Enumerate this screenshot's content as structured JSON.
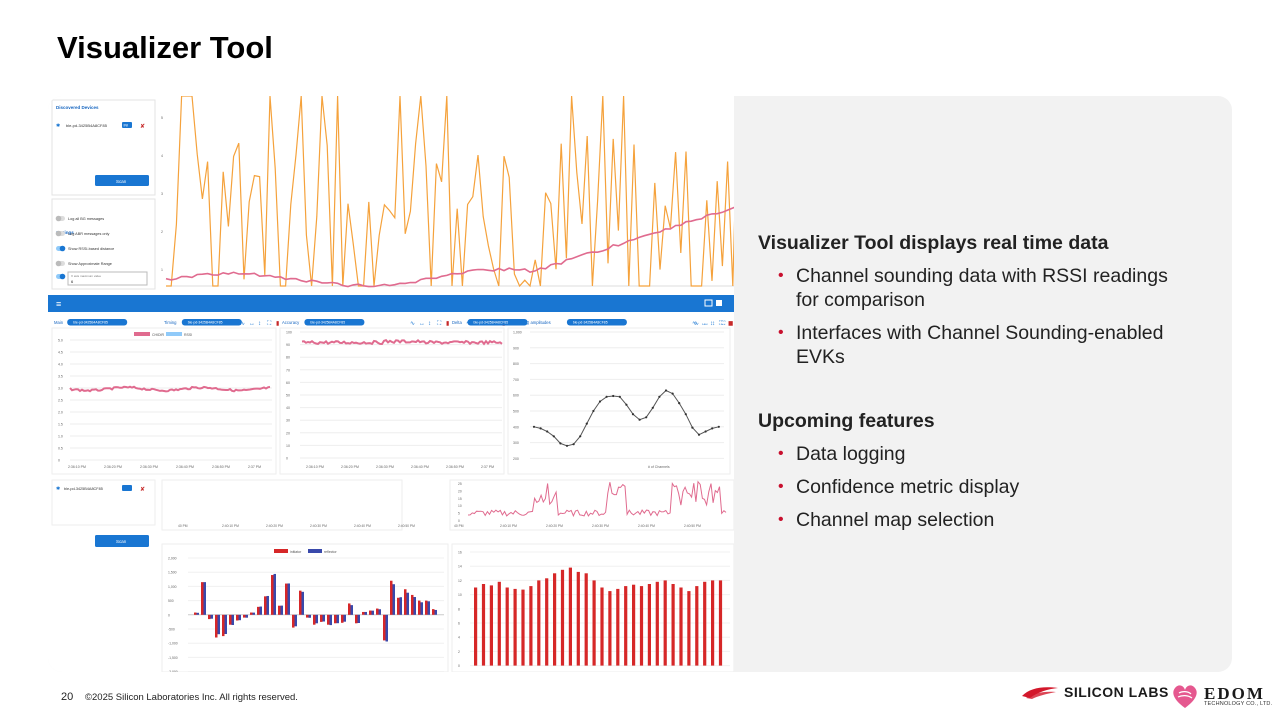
{
  "slide": {
    "title": "Visualizer Tool",
    "page_number": "20",
    "copyright": "©2025 Silicon Laboratories Inc. All rights reserved.",
    "brand_silabs": "SILICON LABS",
    "brand_edom": "EDOM",
    "brand_edom_sub": "TECHNOLOGY CO., LTD."
  },
  "text_panel": {
    "section1_heading": "Visualizer Tool displays real time data",
    "section1_bullets": [
      "Channel sounding data with RSSI readings for comparison",
      "Interfaces with Channel Sounding-enabled EVKs"
    ],
    "section2_heading": "Upcoming features",
    "section2_bullets": [
      "Data logging",
      "Confidence metric display",
      "Channel map selection"
    ]
  },
  "app": {
    "discovered_title": "Discovered Devices",
    "device_name": "ble-pd-3425B4A8CF85",
    "device_badge": "INI",
    "scan_label": "Scan",
    "settings_title": "Settings",
    "settings": [
      {
        "label": "Log all BG messages",
        "on": false
      },
      {
        "label": "Log ABR messages only",
        "on": false
      },
      {
        "label": "Show RSSI-based distance",
        "on": true
      },
      {
        "label": "Show Approximate Range",
        "on": false
      }
    ],
    "moving_avg_label": "X axis maximum value",
    "moving_avg_value": "6",
    "panels": {
      "main_label": "Main",
      "accuracy_label": "Accuracy",
      "iq_label": "Initiator IQ amplitudes",
      "timing_label": "Timing",
      "delta_label": "Delta",
      "device_chip": "ble-pd-3425B4A8CF85",
      "legend_main": [
        "CHIDIR",
        "RSSI"
      ],
      "legend_timing": [
        "initiator",
        "reflector"
      ],
      "iq_xlabel": "# of Channels",
      "main_yticks": [
        "5.0",
        "4.5",
        "4.0",
        "3.5",
        "3.0",
        "2.5",
        "2.0",
        "1.5",
        "1.0",
        "0.5",
        "0"
      ],
      "main_xticks": [
        "2:36:10 PM",
        "2:36:20 PM",
        "2:36:30 PM",
        "2:36:40 PM",
        "2:36:50 PM",
        "2:37 PM"
      ],
      "acc_yticks": [
        "100",
        "90",
        "80",
        "70",
        "60",
        "50",
        "40",
        "30",
        "20",
        "10",
        "0"
      ],
      "iq_yticks": [
        "1,000",
        "900",
        "800",
        "700",
        "600",
        "500",
        "400",
        "300",
        "200"
      ],
      "timing_yticks": [
        "2,000",
        "1,500",
        "1,000",
        "500",
        "0",
        "-500",
        "-1,000",
        "-1,500",
        "-2,000"
      ],
      "delta_yticks": [
        "16",
        "14",
        "12",
        "10",
        "8",
        "6",
        "4",
        "2",
        "0"
      ],
      "mid_xticks": [
        "40 PM",
        "2:40:10 PM",
        "2:40:20 PM",
        "2:40:30 PM",
        "2:40:40 PM",
        "2:40:50 PM"
      ],
      "top_yticks": [
        "1",
        "2",
        "3",
        "4",
        "5"
      ]
    }
  },
  "colors": {
    "accent_blue": "#1976d2",
    "orange": "#f5a23c",
    "pink": "#e06b8f",
    "bar_red": "#d62728",
    "bar_blue": "#3949ab",
    "bullet_red": "#c8102e"
  }
}
